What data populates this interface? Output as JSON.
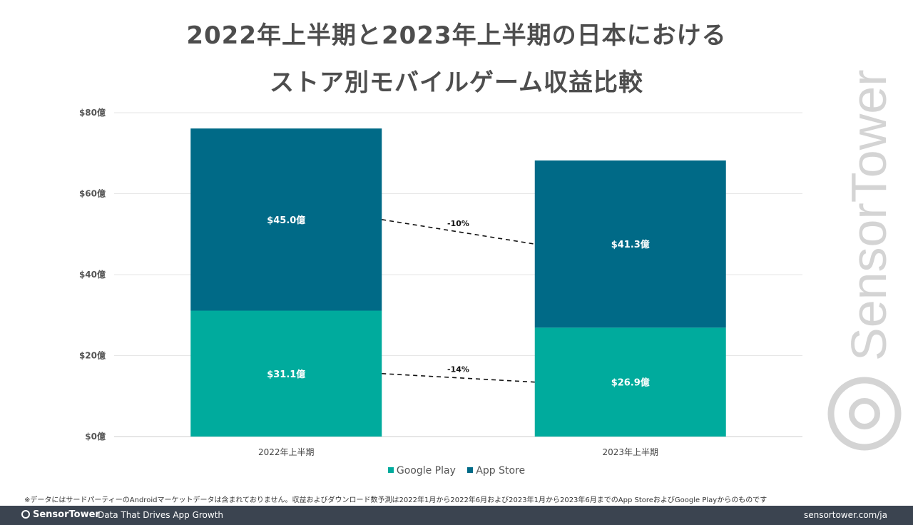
{
  "header": {
    "title_line1": "2022年上半期と2023年上半期の日本における",
    "title_line2": "ストア別モバイルゲーム収益比較"
  },
  "chart_data": {
    "type": "bar",
    "stacked": true,
    "categories": [
      "2022年上半期",
      "2023年上半期"
    ],
    "series": [
      {
        "name": "Google Play",
        "values": [
          31.1,
          26.9
        ],
        "labels": [
          "$31.1億",
          "$26.9億"
        ],
        "color": "#00ab9d"
      },
      {
        "name": "App Store",
        "values": [
          45.0,
          41.3
        ],
        "labels": [
          "$45.0億",
          "$41.3億"
        ],
        "color": "#006a87"
      }
    ],
    "ylim": [
      0,
      80
    ],
    "yticks": [
      0,
      20,
      40,
      60,
      80
    ],
    "ytick_labels": [
      "$0億",
      "$20億",
      "$40億",
      "$60億",
      "$80億"
    ],
    "grid": true,
    "legend_position": "bottom",
    "annotations": [
      {
        "series": "App Store",
        "text": "-10%"
      },
      {
        "series": "Google Play",
        "text": "-14%"
      }
    ]
  },
  "legend": {
    "items": [
      {
        "label": "Google Play",
        "color": "#00ab9d"
      },
      {
        "label": "App Store",
        "color": "#006a87"
      }
    ]
  },
  "footnote": "※データにはサードパーティーのAndroidマーケットデータは含まれておりません。収益およびダウンロード数予測は2022年1月から2022年6月および2023年1月から2023年6月までのApp StoreおよびGoogle Playからのものです",
  "footer": {
    "brand": "SensorTower",
    "tagline": "Data That Drives App Growth",
    "url": "sensortower.com/ja"
  },
  "watermark": {
    "text": "SensorTower",
    "color": "#d4d4d4"
  }
}
